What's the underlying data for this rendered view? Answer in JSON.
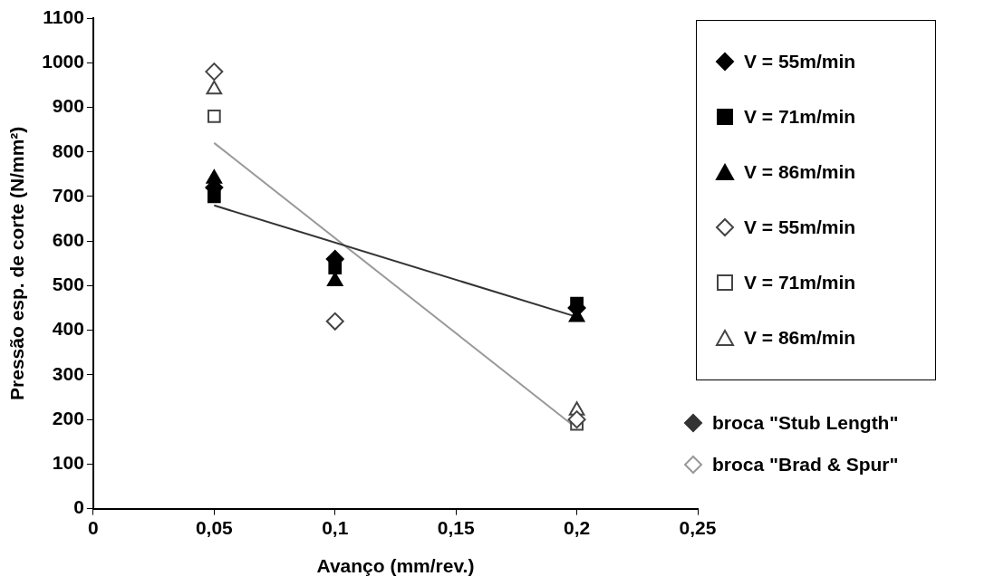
{
  "chart_data": {
    "type": "scatter",
    "xlabel": "Avanço (mm/rev.)",
    "ylabel": "Pressão esp. de corte (N/mm²)",
    "xlim": [
      0,
      0.25
    ],
    "xticks": [
      {
        "value": 0,
        "label": "0"
      },
      {
        "value": 0.05,
        "label": "0,05"
      },
      {
        "value": 0.1,
        "label": "0,1"
      },
      {
        "value": 0.15,
        "label": "0,15"
      },
      {
        "value": 0.2,
        "label": "0,2"
      },
      {
        "value": 0.25,
        "label": "0,25"
      }
    ],
    "ylim": [
      0,
      1100
    ],
    "yticks": [
      0,
      100,
      200,
      300,
      400,
      500,
      600,
      700,
      800,
      900,
      1000,
      1100
    ],
    "grid": false,
    "legend": "right",
    "series": [
      {
        "name": "V = 55m/min",
        "color": "#000000",
        "marker": "diamond",
        "x": [
          0.05,
          0.1,
          0.2
        ],
        "values": [
          720,
          560,
          450
        ]
      },
      {
        "name": "V = 71m/min",
        "color": "#000000",
        "marker": "square",
        "x": [
          0.05,
          0.1,
          0.2
        ],
        "values": [
          700,
          540,
          460
        ]
      },
      {
        "name": "V = 86m/min",
        "color": "#000000",
        "marker": "triangle",
        "x": [
          0.05,
          0.1,
          0.2
        ],
        "values": [
          740,
          510,
          430
        ]
      },
      {
        "name": "V = 55m/min",
        "color": "#ffffff",
        "marker": "diamond",
        "x": [
          0.05,
          0.1,
          0.2
        ],
        "values": [
          980,
          420,
          200
        ]
      },
      {
        "name": "V = 71m/min",
        "color": "#ffffff",
        "marker": "square",
        "x": [
          0.05,
          0.1,
          0.2
        ],
        "values": [
          880,
          null,
          190
        ]
      },
      {
        "name": "V = 86m/min",
        "color": "#ffffff",
        "marker": "triangle",
        "x": [
          0.05,
          0.1,
          0.2
        ],
        "values": [
          940,
          null,
          220
        ]
      },
      {
        "name": "broca \"Stub Length\"",
        "type": "line",
        "color": "#333333",
        "marker": "none",
        "x": [
          0.05,
          0.2
        ],
        "values": [
          680,
          430
        ]
      },
      {
        "name": "broca \"Brad & Spur\"",
        "type": "line",
        "color": "#999999",
        "marker": "none",
        "x": [
          0.05,
          0.2
        ],
        "values": [
          820,
          180
        ]
      }
    ]
  }
}
